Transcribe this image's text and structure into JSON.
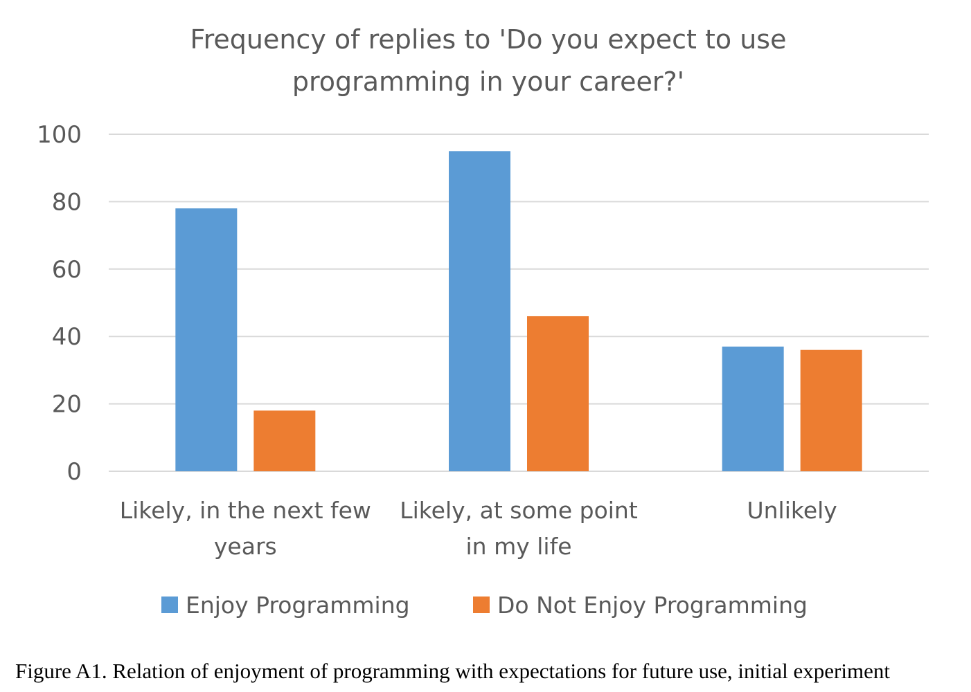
{
  "chart_data": {
    "type": "bar",
    "title": "Frequency of replies to 'Do you expect to use programming in your career?'",
    "title_lines": [
      "Frequency of replies to 'Do you expect to use",
      "programming in your career?'"
    ],
    "categories": [
      "Likely, in the next few years",
      "Likely, at some point in my life",
      "Unlikely"
    ],
    "category_lines": [
      [
        "Likely, in the next few",
        "years"
      ],
      [
        "Likely, at some point",
        "in my life"
      ],
      [
        "Unlikely"
      ]
    ],
    "series": [
      {
        "name": "Enjoy Programming",
        "color": "#5b9bd5",
        "values": [
          78,
          95,
          37
        ]
      },
      {
        "name": "Do Not Enjoy Programming",
        "color": "#ed7d31",
        "values": [
          18,
          46,
          36
        ]
      }
    ],
    "ylim": [
      0,
      100
    ],
    "yticks": [
      0,
      20,
      40,
      60,
      80,
      100
    ],
    "grid": true,
    "gridline_color": "#d9d9d9",
    "legend_position": "bottom"
  },
  "caption": "Figure A1. Relation of enjoyment of programming with expectations for future use, initial experiment"
}
